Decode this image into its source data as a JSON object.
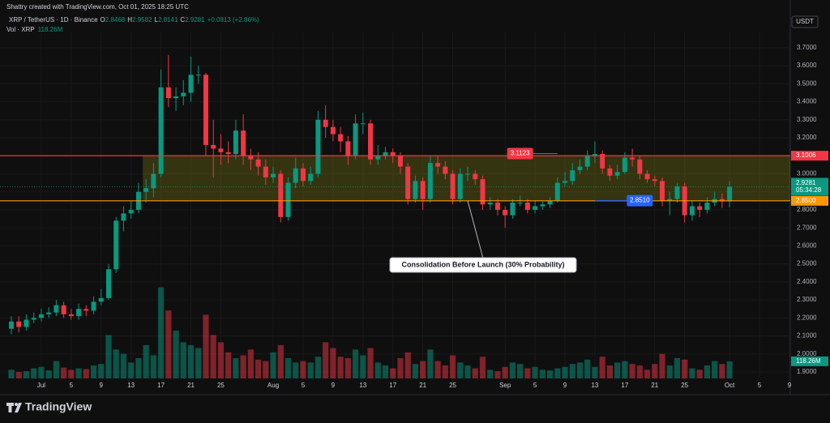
{
  "header": {
    "credit": "Shattry created with TradingView.com, Oct 01, 2025 18:25 UTC",
    "symbol": "XRP / TetherUS · 1D · Binance",
    "ohlc_keys": [
      "O",
      "H",
      "L",
      "C"
    ],
    "change": "+0.0813 (+2.86%)",
    "volume_name": "Vol · XRP",
    "currency": "USDT",
    "brand": "TradingView"
  },
  "chart_data": {
    "type": "candlestick",
    "x": [
      "2025-06-27",
      "2025-06-28",
      "2025-06-29",
      "2025-06-30",
      "2025-07-01",
      "2025-07-02",
      "2025-07-03",
      "2025-07-04",
      "2025-07-05",
      "2025-07-06",
      "2025-07-07",
      "2025-07-08",
      "2025-07-09",
      "2025-07-10",
      "2025-07-11",
      "2025-07-12",
      "2025-07-13",
      "2025-07-14",
      "2025-07-15",
      "2025-07-16",
      "2025-07-17",
      "2025-07-18",
      "2025-07-19",
      "2025-07-20",
      "2025-07-21",
      "2025-07-22",
      "2025-07-23",
      "2025-07-24",
      "2025-07-25",
      "2025-07-26",
      "2025-07-27",
      "2025-07-28",
      "2025-07-29",
      "2025-07-30",
      "2025-07-31",
      "2025-08-01",
      "2025-08-02",
      "2025-08-03",
      "2025-08-04",
      "2025-08-05",
      "2025-08-06",
      "2025-08-07",
      "2025-08-08",
      "2025-08-09",
      "2025-08-10",
      "2025-08-11",
      "2025-08-12",
      "2025-08-13",
      "2025-08-14",
      "2025-08-15",
      "2025-08-16",
      "2025-08-17",
      "2025-08-18",
      "2025-08-19",
      "2025-08-20",
      "2025-08-21",
      "2025-08-22",
      "2025-08-23",
      "2025-08-24",
      "2025-08-25",
      "2025-08-26",
      "2025-08-27",
      "2025-08-28",
      "2025-08-29",
      "2025-08-30",
      "2025-08-31",
      "2025-09-01",
      "2025-09-02",
      "2025-09-03",
      "2025-09-04",
      "2025-09-05",
      "2025-09-06",
      "2025-09-07",
      "2025-09-08",
      "2025-09-09",
      "2025-09-10",
      "2025-09-11",
      "2025-09-12",
      "2025-09-13",
      "2025-09-14",
      "2025-09-15",
      "2025-09-16",
      "2025-09-17",
      "2025-09-18",
      "2025-09-19",
      "2025-09-20",
      "2025-09-21",
      "2025-09-22",
      "2025-09-23",
      "2025-09-24",
      "2025-09-25",
      "2025-09-26",
      "2025-09-27",
      "2025-09-28",
      "2025-09-29",
      "2025-09-30",
      "2025-10-01"
    ],
    "open": [
      2.14,
      2.18,
      2.15,
      2.19,
      2.2,
      2.22,
      2.23,
      2.27,
      2.22,
      2.21,
      2.25,
      2.24,
      2.29,
      2.31,
      2.47,
      2.74,
      2.78,
      2.8,
      2.9,
      2.92,
      3.0,
      3.48,
      3.42,
      3.43,
      3.45,
      3.55,
      3.55,
      3.16,
      3.14,
      3.12,
      3.11,
      3.24,
      3.1,
      3.08,
      3.04,
      2.98,
      3.0,
      2.76,
      2.95,
      3.03,
      2.96,
      3.0,
      3.3,
      3.26,
      3.22,
      3.18,
      3.1,
      3.28,
      3.28,
      3.08,
      3.1,
      3.12,
      3.1,
      3.04,
      2.86,
      2.96,
      2.86,
      3.06,
      3.04,
      3.0,
      2.86,
      3.0,
      3.0,
      2.97,
      2.83,
      2.84,
      2.8,
      2.77,
      2.84,
      2.84,
      2.8,
      2.82,
      2.83,
      2.85,
      2.95,
      2.96,
      3.02,
      3.04,
      3.1,
      3.11,
      3.03,
      2.99,
      3.01,
      3.09,
      3.08,
      3.0,
      2.97,
      2.96,
      2.85,
      2.86,
      2.93,
      2.77,
      2.82,
      2.8,
      2.84,
      2.86,
      2.8468
    ],
    "high": [
      2.21,
      2.21,
      2.22,
      2.23,
      2.25,
      2.26,
      2.3,
      2.29,
      2.25,
      2.28,
      2.27,
      2.32,
      2.36,
      2.5,
      2.76,
      2.82,
      2.85,
      2.95,
      2.97,
      3.06,
      3.58,
      3.66,
      3.48,
      3.52,
      3.65,
      3.6,
      3.56,
      3.3,
      3.22,
      3.18,
      3.3,
      3.33,
      3.14,
      3.12,
      3.08,
      3.04,
      3.02,
      2.98,
      3.09,
      3.06,
      3.04,
      3.35,
      3.38,
      3.3,
      3.26,
      3.21,
      3.33,
      3.34,
      3.3,
      3.16,
      3.15,
      3.14,
      3.12,
      3.06,
      2.99,
      2.98,
      3.1,
      3.1,
      3.07,
      3.02,
      3.03,
      3.04,
      3.02,
      2.99,
      2.87,
      2.86,
      2.82,
      2.86,
      2.88,
      2.86,
      2.85,
      2.85,
      2.87,
      2.98,
      3.01,
      3.06,
      3.08,
      3.13,
      3.18,
      3.13,
      3.05,
      3.05,
      3.12,
      3.14,
      3.1,
      3.02,
      2.99,
      2.98,
      2.9,
      2.95,
      2.95,
      2.85,
      2.84,
      2.87,
      2.9,
      2.89,
      2.9582
    ],
    "low": [
      2.11,
      2.12,
      2.13,
      2.17,
      2.18,
      2.2,
      2.21,
      2.2,
      2.19,
      2.19,
      2.21,
      2.22,
      2.27,
      2.3,
      2.45,
      2.68,
      2.75,
      2.78,
      2.84,
      2.87,
      2.98,
      3.37,
      3.35,
      3.38,
      3.4,
      3.5,
      3.1,
      2.98,
      3.05,
      3.06,
      3.08,
      3.05,
      3.02,
      2.99,
      2.94,
      2.95,
      2.73,
      2.74,
      2.92,
      2.93,
      2.94,
      2.98,
      3.2,
      3.18,
      3.12,
      3.05,
      3.08,
      3.22,
      3.05,
      3.05,
      3.08,
      3.06,
      3.0,
      2.83,
      2.84,
      2.8,
      2.84,
      3.0,
      2.97,
      2.83,
      2.84,
      2.96,
      2.94,
      2.8,
      2.8,
      2.77,
      2.7,
      2.75,
      2.82,
      2.78,
      2.78,
      2.8,
      2.81,
      2.84,
      2.93,
      2.94,
      3.0,
      3.02,
      3.06,
      3.0,
      2.96,
      2.97,
      3.0,
      3.04,
      2.97,
      2.95,
      2.93,
      2.82,
      2.77,
      2.84,
      2.73,
      2.74,
      2.76,
      2.78,
      2.82,
      2.81,
      2.8141
    ],
    "close": [
      2.18,
      2.15,
      2.19,
      2.2,
      2.22,
      2.23,
      2.27,
      2.22,
      2.21,
      2.25,
      2.24,
      2.29,
      2.31,
      2.47,
      2.74,
      2.78,
      2.8,
      2.9,
      2.92,
      3.0,
      3.48,
      3.42,
      3.43,
      3.45,
      3.55,
      3.55,
      3.16,
      3.14,
      3.12,
      3.11,
      3.24,
      3.1,
      3.08,
      3.04,
      2.98,
      3.0,
      2.76,
      2.95,
      3.03,
      2.96,
      3.0,
      3.3,
      3.26,
      3.22,
      3.18,
      3.1,
      3.28,
      3.28,
      3.08,
      3.1,
      3.12,
      3.1,
      3.04,
      2.86,
      2.96,
      2.86,
      3.06,
      3.04,
      3.0,
      2.86,
      3.0,
      3.0,
      2.97,
      2.83,
      2.84,
      2.8,
      2.77,
      2.84,
      2.84,
      2.8,
      2.82,
      2.83,
      2.85,
      2.95,
      2.96,
      3.02,
      3.04,
      3.1,
      3.11,
      3.03,
      2.99,
      3.01,
      3.09,
      3.08,
      3.0,
      2.97,
      2.96,
      2.85,
      2.86,
      2.93,
      2.77,
      2.82,
      2.8,
      2.84,
      2.86,
      2.8468,
      2.9281
    ],
    "volume": [
      60,
      45,
      50,
      70,
      80,
      55,
      120,
      75,
      60,
      70,
      65,
      90,
      100,
      300,
      200,
      170,
      110,
      140,
      230,
      160,
      630,
      470,
      330,
      250,
      230,
      210,
      440,
      300,
      250,
      180,
      140,
      160,
      200,
      130,
      120,
      180,
      230,
      140,
      110,
      120,
      110,
      150,
      250,
      210,
      150,
      140,
      200,
      160,
      210,
      110,
      90,
      70,
      140,
      180,
      100,
      120,
      200,
      120,
      90,
      160,
      110,
      90,
      70,
      150,
      60,
      50,
      80,
      110,
      100,
      70,
      80,
      60,
      55,
      70,
      80,
      100,
      110,
      130,
      80,
      150,
      90,
      110,
      120,
      100,
      90,
      60,
      100,
      170,
      90,
      140,
      130,
      70,
      60,
      90,
      120,
      100,
      118.26
    ],
    "volume_last_label": "118.26M",
    "volume_ylim": [
      0,
      700
    ],
    "up_color": "#089981",
    "down_color": "#f23645",
    "ylim": [
      1.864,
      3.785
    ],
    "yticks": [
      {
        "value": 1.9,
        "label": "1.9000"
      },
      {
        "value": 2.0,
        "label": "2.0000"
      },
      {
        "value": 2.1,
        "label": "2.1000"
      },
      {
        "value": 2.2,
        "label": "2.2000"
      },
      {
        "value": 2.3,
        "label": "2.3000"
      },
      {
        "value": 2.4,
        "label": "2.4000"
      },
      {
        "value": 2.5,
        "label": "2.5000"
      },
      {
        "value": 2.6,
        "label": "2.6000"
      },
      {
        "value": 2.7,
        "label": "2.7000"
      },
      {
        "value": 2.8,
        "label": "2.8000"
      },
      {
        "value": 2.9,
        "label": "2.9000"
      },
      {
        "value": 3.0,
        "label": "3.0000"
      },
      {
        "value": 3.1,
        "label": "3.1000"
      },
      {
        "value": 3.2,
        "label": "3.2000"
      },
      {
        "value": 3.3,
        "label": "3.3000"
      },
      {
        "value": 3.4,
        "label": "3.4000"
      },
      {
        "value": 3.5,
        "label": "3.5000"
      },
      {
        "value": 3.6,
        "label": "3.6000"
      },
      {
        "value": 3.7,
        "label": "3.7000"
      }
    ],
    "xticks": [
      {
        "value": "2025-07-01",
        "label": "Jul"
      },
      {
        "value": "2025-07-05",
        "label": "5"
      },
      {
        "value": "2025-07-09",
        "label": "9"
      },
      {
        "value": "2025-07-13",
        "label": "13"
      },
      {
        "value": "2025-07-17",
        "label": "17"
      },
      {
        "value": "2025-07-21",
        "label": "21"
      },
      {
        "value": "2025-07-25",
        "label": "25"
      },
      {
        "value": "2025-08-01",
        "label": "Aug"
      },
      {
        "value": "2025-08-05",
        "label": "5"
      },
      {
        "value": "2025-08-09",
        "label": "9"
      },
      {
        "value": "2025-08-13",
        "label": "13"
      },
      {
        "value": "2025-08-17",
        "label": "17"
      },
      {
        "value": "2025-08-21",
        "label": "21"
      },
      {
        "value": "2025-08-25",
        "label": "25"
      },
      {
        "value": "2025-09-01",
        "label": "Sep"
      },
      {
        "value": "2025-09-05",
        "label": "5"
      },
      {
        "value": "2025-09-09",
        "label": "9"
      },
      {
        "value": "2025-09-13",
        "label": "13"
      },
      {
        "value": "2025-09-17",
        "label": "17"
      },
      {
        "value": "2025-09-21",
        "label": "21"
      },
      {
        "value": "2025-09-25",
        "label": "25"
      },
      {
        "value": "2025-10-01",
        "label": "Oct"
      },
      {
        "value": "2025-10-05",
        "label": "5"
      },
      {
        "value": "2025-10-09",
        "label": "9"
      }
    ],
    "grid": true,
    "levels": [
      {
        "value": 3.1006,
        "label": "3.1006",
        "color": "#f23645"
      },
      {
        "value": 2.85,
        "label": "2.8500",
        "color": "#ff9800"
      }
    ],
    "zone_start": "2025-07-15",
    "last_price_countdown": "05:34:28",
    "markers": [
      {
        "value": 3.1123,
        "label": "3.1123",
        "x": "2025-09-03",
        "x2": "2025-09-08",
        "color": "#f23645"
      },
      {
        "value": 2.851,
        "label": "2.8510",
        "x": "2025-09-19",
        "x2": "2025-09-13",
        "color": "#2962ff"
      }
    ],
    "annotation": {
      "text": "Consolidation Before Launch (30% Probability)",
      "x": "2025-08-27",
      "value": 2.85
    }
  }
}
